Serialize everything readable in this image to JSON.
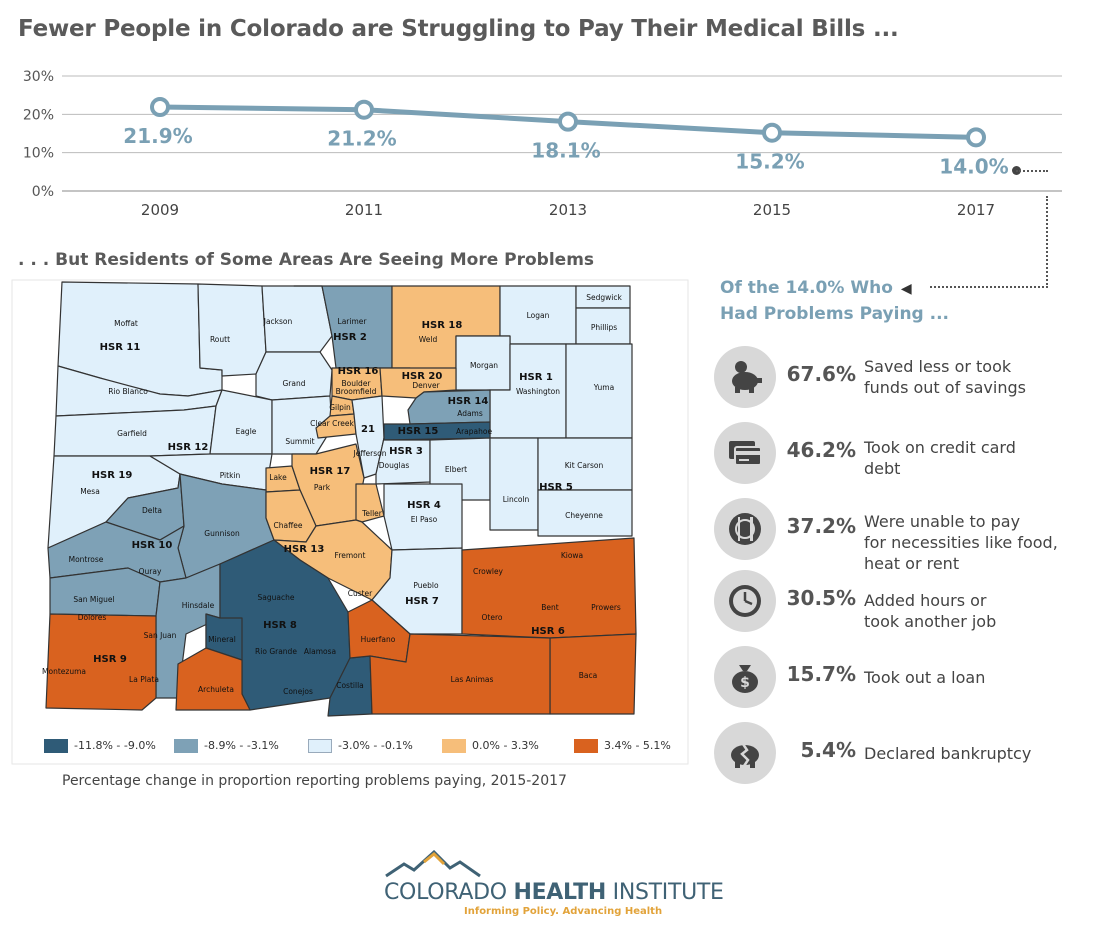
{
  "header": {
    "title": "Fewer People in Colorado are Struggling to Pay Their Medical Bills ...",
    "subtitle": ". . . But Residents of Some Areas Are Seeing More Problems"
  },
  "chart_data": {
    "type": "line",
    "x": [
      "2009",
      "2011",
      "2013",
      "2015",
      "2017"
    ],
    "series": [
      {
        "values": [
          21.9,
          21.2,
          18.1,
          15.2,
          14.0
        ],
        "labels": [
          "21.9%",
          "21.2%",
          "18.1%",
          "15.2%",
          "14.0%"
        ]
      }
    ],
    "yticks": [
      "30%",
      "20%",
      "10%",
      "0%"
    ],
    "ylim": [
      0,
      30
    ],
    "grid": true,
    "line_color": "#7aa0b4",
    "label_color": "#7aa0b4"
  },
  "map": {
    "legend": [
      {
        "label": "-11.8% - -9.0%",
        "color": "#2f5b77"
      },
      {
        "label": "-8.9% - -3.1%",
        "color": "#7ea1b6"
      },
      {
        "label": "-3.0% - -0.1%",
        "color": "#e0f0fb"
      },
      {
        "label": "0.0% - 3.3%",
        "color": "#f6be7a"
      },
      {
        "label": "3.4% - 5.1%",
        "color": "#d9621f"
      }
    ],
    "caption": "Percentage change in proportion reporting problems paying, 2015-2017",
    "region_labels": [
      "HSR 11",
      "HSR 2",
      "HSR 18",
      "HSR 1",
      "HSR 16",
      "HSR 20",
      "HSR 14",
      "HSR 12",
      "HSR 15",
      "HSR 3",
      "HSR 19",
      "HSR 17",
      "HSR 4",
      "HSR 5",
      "HSR 10",
      "HSR 13",
      "HSR 7",
      "HSR 8",
      "HSR 9",
      "HSR 6"
    ],
    "county_labels": [
      "Moffat",
      "Routt",
      "Jackson",
      "Larimer",
      "Weld",
      "Logan",
      "Sedgwick",
      "Phillips",
      "Morgan",
      "Washington",
      "Yuma",
      "Rio Blanco",
      "Grand",
      "Boulder",
      "Broomfield",
      "Denver",
      "Adams",
      "Garfield",
      "Eagle",
      "Summit",
      "Gilpin",
      "Clear Creek",
      "Arapahoe",
      "Jefferson",
      "Douglas",
      "Elbert",
      "Kit Carson",
      "Mesa",
      "Pitkin",
      "Lake",
      "Park",
      "Teller",
      "El Paso",
      "Lincoln",
      "Cheyenne",
      "Delta",
      "Gunnison",
      "Chaffee",
      "Fremont",
      "Montrose",
      "Ouray",
      "Kiowa",
      "Crowley",
      "Pueblo",
      "Custer",
      "San Miguel",
      "Hinsdale",
      "Saguache",
      "Otero",
      "Bent",
      "Prowers",
      "Dolores",
      "San Juan",
      "Mineral",
      "Rio Grande",
      "Alamosa",
      "Huerfano",
      "Montezuma",
      "La Plata",
      "Archuleta",
      "Conejos",
      "Costilla",
      "Las Animas",
      "Baca",
      "21"
    ]
  },
  "side": {
    "title_line1": "Of the 14.0% Who",
    "title_line2": "Had Problems Paying ...",
    "arrow": "◀",
    "stats": [
      {
        "icon": "piggy-bank-icon",
        "pct": "67.6%",
        "line1": "Saved less or took",
        "line2": "funds out of savings",
        "line3": ""
      },
      {
        "icon": "credit-card-icon",
        "pct": "46.2%",
        "line1": "Took on credit card",
        "line2": "debt",
        "line3": ""
      },
      {
        "icon": "food-icon",
        "pct": "37.2%",
        "line1": "Were unable to pay",
        "line2": "for necessities like food,",
        "line3": "heat or rent"
      },
      {
        "icon": "clock-icon",
        "pct": "30.5%",
        "line1": "Added hours or",
        "line2": "took another job",
        "line3": ""
      },
      {
        "icon": "money-bag-icon",
        "pct": "15.7%",
        "line1": "Took out a loan",
        "line2": "",
        "line3": ""
      },
      {
        "icon": "broken-piggy-icon",
        "pct": "5.4%",
        "line1": "Declared bankruptcy",
        "line2": "",
        "line3": ""
      }
    ]
  },
  "logo": {
    "name_light": "COLORADO ",
    "name_bold": "HEALTH",
    "name_end": " INSTITUTE",
    "tagline": "Informing Policy. Advancing Health"
  }
}
